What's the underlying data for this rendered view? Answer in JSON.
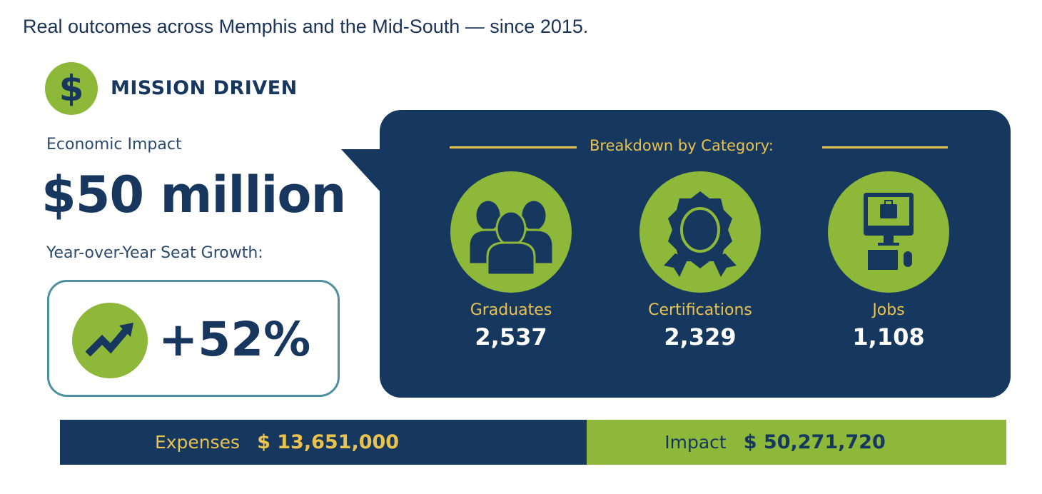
{
  "subtitle": "Real outcomes across Memphis and the Mid-South — since 2015.",
  "brand": {
    "icon": "dollar-sign-icon",
    "symbol": "$",
    "title": "MISSION DRIVEN"
  },
  "economic_impact": {
    "label": "Economic Impact",
    "value": "$50 million"
  },
  "growth": {
    "label": "Year-over-Year Seat Growth:",
    "icon": "trending-up-icon",
    "value": "+52%"
  },
  "breakdown": {
    "heading": "Breakdown by Category:",
    "categories": [
      {
        "icon": "people-group-icon",
        "label": "Graduates",
        "value": "2,537"
      },
      {
        "icon": "award-badge-icon",
        "label": "Certifications",
        "value": "2,329"
      },
      {
        "icon": "computer-briefcase-icon",
        "label": "Jobs",
        "value": "1,108"
      }
    ]
  },
  "footer": {
    "expenses": {
      "label": "Expenses",
      "value": "$ 13,651,000"
    },
    "impact": {
      "label": "Impact",
      "value": "$ 50,271,720"
    }
  },
  "colors": {
    "navy": "#16375e",
    "green": "#8db83a",
    "gold": "#e9c24f",
    "teal_border": "#4e8fa0"
  }
}
